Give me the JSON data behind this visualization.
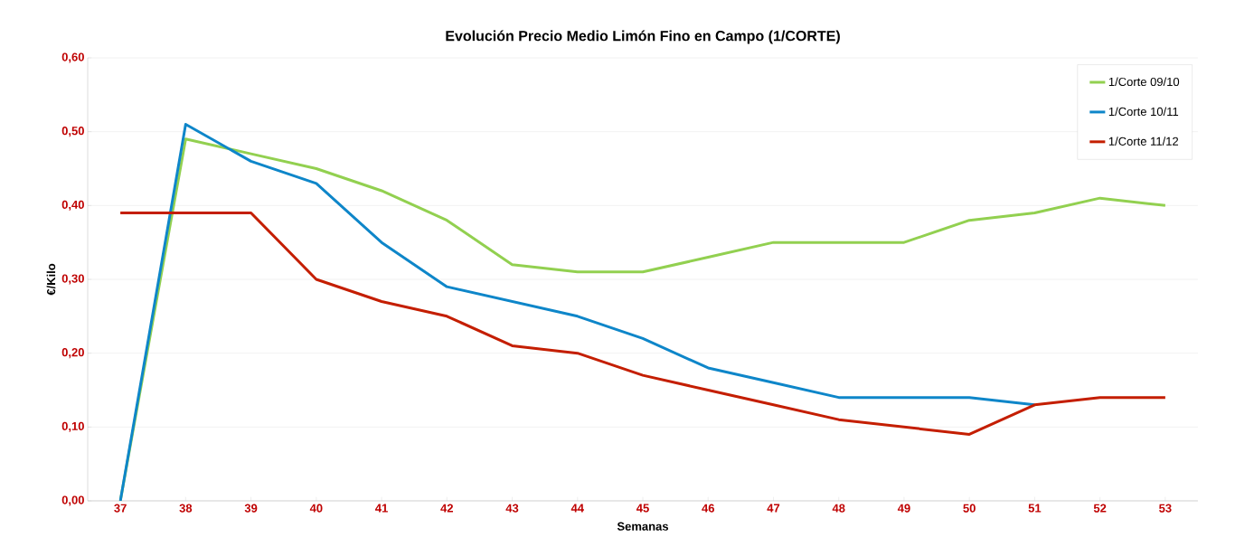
{
  "chart_data": {
    "type": "line",
    "title": "Evolución Precio Medio Limón Fino en Campo (1/CORTE)",
    "xlabel": "Semanas",
    "ylabel": "€/Kilo",
    "categories": [
      "37",
      "38",
      "39",
      "40",
      "41",
      "42",
      "43",
      "44",
      "45",
      "46",
      "47",
      "48",
      "49",
      "50",
      "51",
      "52",
      "53"
    ],
    "series": [
      {
        "name": "1/Corte 09/10",
        "color": "#92d050",
        "values": [
          0,
          0.49,
          0.47,
          0.45,
          0.42,
          0.38,
          0.32,
          0.31,
          0.31,
          0.33,
          0.35,
          0.35,
          0.35,
          0.38,
          0.39,
          0.41,
          0.4
        ]
      },
      {
        "name": "1/Corte 10/11",
        "color": "#0e86c9",
        "values": [
          0,
          0.51,
          0.46,
          0.43,
          0.35,
          0.29,
          0.27,
          0.25,
          0.22,
          0.18,
          0.16,
          0.14,
          0.14,
          0.14,
          0.13,
          null,
          null
        ]
      },
      {
        "name": "1/Corte 11/12",
        "color": "#c41e00",
        "values": [
          0.39,
          0.39,
          0.39,
          0.3,
          0.27,
          0.25,
          0.21,
          0.2,
          0.17,
          0.15,
          0.13,
          0.11,
          0.1,
          0.09,
          0.13,
          0.14,
          0.14
        ]
      }
    ],
    "ylim": [
      0,
      0.6
    ],
    "yticks": [
      {
        "value": 0,
        "label": "0,00"
      },
      {
        "value": 0.1,
        "label": "0,10"
      },
      {
        "value": 0.2,
        "label": "0,20"
      },
      {
        "value": 0.3,
        "label": "0,30"
      },
      {
        "value": 0.4,
        "label": "0,40"
      },
      {
        "value": 0.5,
        "label": "0,50"
      },
      {
        "value": 0.6,
        "label": "0,60"
      }
    ],
    "grid": "y",
    "legend": "top right",
    "marker": "none",
    "line_style": "solid"
  }
}
